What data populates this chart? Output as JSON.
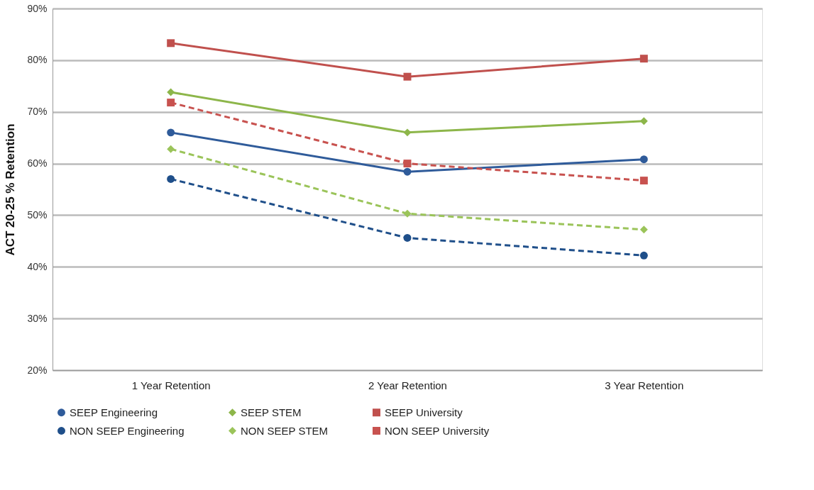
{
  "chart_data": {
    "type": "line",
    "ylabel": "ACT 20-25 % Retention",
    "categories": [
      "1 Year Retention",
      "2 Year Retention",
      "3 Year Retention"
    ],
    "series": [
      {
        "name": "SEEP Engineering",
        "color": "#2f5b9a",
        "marker": "circle",
        "line_style": "solid",
        "values": [
          66.0,
          58.4,
          60.8
        ]
      },
      {
        "name": "SEEP STEM",
        "color": "#8db64a",
        "marker": "diamond",
        "line_style": "solid",
        "values": [
          73.8,
          66.0,
          68.2
        ]
      },
      {
        "name": "SEEP University",
        "color": "#c0504d",
        "marker": "square",
        "line_style": "solid",
        "values": [
          83.3,
          76.8,
          80.3
        ]
      },
      {
        "name": "NON SEEP Engineering",
        "color": "#1f4f8a",
        "marker": "circle",
        "line_style": "dashed",
        "values": [
          57.0,
          45.6,
          42.2
        ]
      },
      {
        "name": "NON SEEP STEM",
        "color": "#9bc45a",
        "marker": "diamond",
        "line_style": "dashed",
        "values": [
          62.8,
          50.3,
          47.2
        ]
      },
      {
        "name": "NON SEEP University",
        "color": "#c8524f",
        "marker": "square",
        "line_style": "dashed",
        "values": [
          71.8,
          60.0,
          56.7
        ]
      }
    ],
    "ylim": [
      20,
      90
    ],
    "yticks": [
      {
        "value": 20,
        "label": "20%"
      },
      {
        "value": 30,
        "label": "30%"
      },
      {
        "value": 40,
        "label": "40%"
      },
      {
        "value": 50,
        "label": "50%"
      },
      {
        "value": 60,
        "label": "60%"
      },
      {
        "value": 70,
        "label": "70%"
      },
      {
        "value": 80,
        "label": "80%"
      },
      {
        "value": 90,
        "label": "90%"
      }
    ],
    "grid": "y",
    "legend": "bottom"
  }
}
